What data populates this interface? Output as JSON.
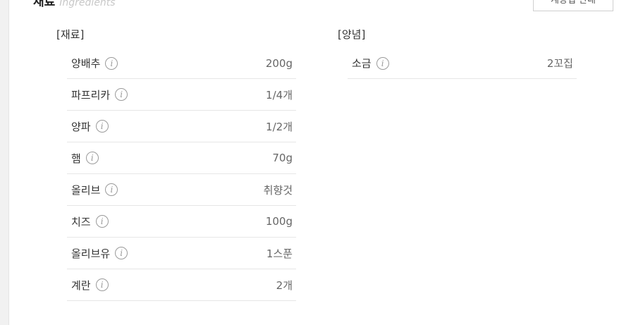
{
  "section": {
    "title": "재료",
    "subtitle": "Ingredients",
    "action_button": "계량법 안내"
  },
  "groups": [
    {
      "title": "[재료]",
      "items": [
        {
          "name": "양배추",
          "amount": "200g"
        },
        {
          "name": "파프리카",
          "amount": "1/4개"
        },
        {
          "name": "양파",
          "amount": "1/2개"
        },
        {
          "name": "햄",
          "amount": "70g"
        },
        {
          "name": "올리브",
          "amount": "취향것"
        },
        {
          "name": "치즈",
          "amount": "100g"
        },
        {
          "name": "올리브유",
          "amount": "1스푼"
        },
        {
          "name": "계란",
          "amount": "2개"
        }
      ]
    },
    {
      "title": "[양념]",
      "items": [
        {
          "name": "소금",
          "amount": "2꼬집"
        }
      ]
    }
  ],
  "info_icon_glyph": "i"
}
